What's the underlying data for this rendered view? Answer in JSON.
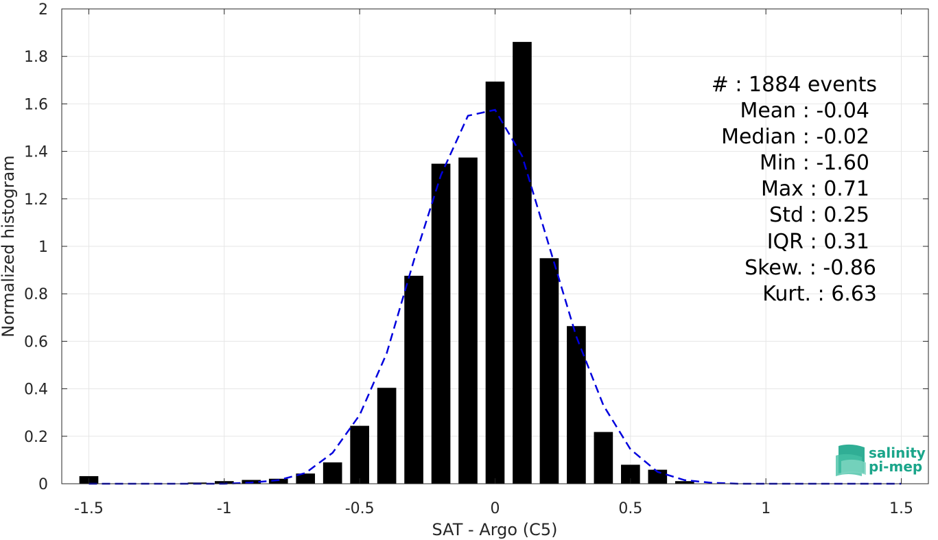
{
  "chart_data": {
    "type": "bar",
    "xlabel": "SAT - Argo (C5)",
    "ylabel": "Normalized histogram",
    "xlim": [
      -1.6,
      1.6
    ],
    "ylim": [
      0,
      2
    ],
    "xticks": [
      -1.5,
      -1,
      -0.5,
      0,
      0.5,
      1,
      1.5
    ],
    "xtick_labels": [
      "-1.5",
      "-1",
      "-0.5",
      "0",
      "0.5",
      "1",
      "1.5"
    ],
    "yticks": [
      0,
      0.2,
      0.4,
      0.6,
      0.8,
      1,
      1.2,
      1.4,
      1.6,
      1.8,
      2
    ],
    "ytick_labels": [
      "0",
      "0.2",
      "0.4",
      "0.6",
      "0.8",
      "1",
      "1.2",
      "1.4",
      "1.6",
      "1.8",
      "2"
    ],
    "grid": true,
    "bar_color": "#000000",
    "bar_width": 0.07,
    "bars": {
      "x": [
        -1.5,
        -1.1,
        -1.0,
        -0.9,
        -0.8,
        -0.7,
        -0.6,
        -0.5,
        -0.4,
        -0.3,
        -0.2,
        -0.1,
        0.0,
        0.1,
        0.2,
        0.3,
        0.4,
        0.5,
        0.6,
        0.7
      ],
      "values": [
        0.032,
        0.005,
        0.011,
        0.016,
        0.021,
        0.043,
        0.09,
        0.244,
        0.404,
        0.876,
        1.348,
        1.374,
        1.694,
        1.861,
        0.95,
        0.664,
        0.218,
        0.08,
        0.059,
        0.011
      ]
    },
    "fit_curve": {
      "style": "dashed",
      "color": "#0000dd",
      "x": [
        -1.5,
        -1.4,
        -1.3,
        -1.2,
        -1.1,
        -1.0,
        -0.9,
        -0.8,
        -0.7,
        -0.6,
        -0.5,
        -0.4,
        -0.3,
        -0.2,
        -0.1,
        0.0,
        0.1,
        0.2,
        0.3,
        0.4,
        0.5,
        0.6,
        0.7,
        0.8,
        0.9,
        1.0,
        1.1,
        1.2,
        1.3,
        1.4,
        1.5
      ],
      "y": [
        0.0,
        0.0,
        0.0,
        0.0,
        0.0,
        0.0,
        0.005,
        0.015,
        0.045,
        0.13,
        0.29,
        0.55,
        0.94,
        1.3,
        1.55,
        1.575,
        1.38,
        1.0,
        0.62,
        0.33,
        0.145,
        0.05,
        0.015,
        0.004,
        0.0,
        0.0,
        0.0,
        0.0,
        0.0,
        0.0,
        0.0
      ]
    }
  },
  "stats": {
    "lines": [
      "#  : 1884 events",
      "Mean : -0.04",
      "Median : -0.02",
      "Min : -1.60",
      "Max : 0.71",
      "Std : 0.25",
      "IQR : 0.31",
      "Skew. : -0.86",
      "Kurt. : 6.63"
    ]
  },
  "logo": {
    "line1": "salinity",
    "line2": "pi-mep",
    "color": "#1aa58a"
  }
}
